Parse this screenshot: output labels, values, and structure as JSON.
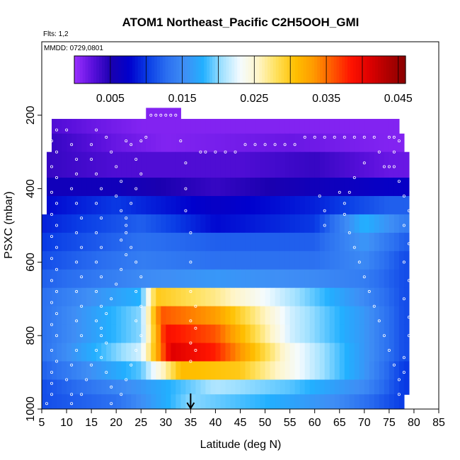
{
  "chart_data": {
    "type": "heatmap",
    "title": "ATOM1 Northeast_Pacific C2H5OOH_GMI",
    "subtitle_flights": "Flts: 1,2",
    "subtitle_dates": "MMDD: 0729,0801",
    "xlabel": "Latitude (deg N)",
    "ylabel": "PSXC (mbar)",
    "xlim": [
      5,
      85
    ],
    "ylim": [
      1000,
      0
    ],
    "x_ticks": [
      "5",
      "10",
      "15",
      "20",
      "25",
      "30",
      "35",
      "40",
      "45",
      "50",
      "55",
      "60",
      "65",
      "70",
      "75",
      "80",
      "85"
    ],
    "y_ticks": [
      "200",
      "400",
      "600",
      "800",
      "1000"
    ],
    "colorbar": {
      "range": [
        0,
        0.046
      ],
      "tick_values": [
        0.005,
        0.015,
        0.025,
        0.035,
        0.045
      ],
      "tick_labels": [
        "0.005",
        "0.015",
        "0.025",
        "0.035",
        "0.045"
      ],
      "colors": [
        "#9b30ff",
        "#5a10dc",
        "#1a00b0",
        "#0000cd",
        "#0a3ee6",
        "#2a6ef0",
        "#3f8ef5",
        "#22b0ff",
        "#9fe0ff",
        "#f4fbff",
        "#fff5c8",
        "#ffe05a",
        "#ffc000",
        "#ff9a00",
        "#ff5a00",
        "#ff1500",
        "#e00000",
        "#b00000",
        "#8b0000"
      ]
    },
    "marker_latitude": 35,
    "levels": [
      {
        "p_top": 180,
        "p_bot": 210,
        "x_start": 26,
        "x_end": 33,
        "values": [
          {
            "lat": 26,
            "v": 0.001
          }
        ]
      },
      {
        "p_top": 210,
        "p_bot": 250,
        "x_start": 7,
        "x_end": 77,
        "values": [
          {
            "lat": 7,
            "v": 0.003
          },
          {
            "lat": 15,
            "v": 0.002
          },
          {
            "lat": 25,
            "v": 0.001
          },
          {
            "lat": 60,
            "v": 0.001
          }
        ]
      },
      {
        "p_top": 250,
        "p_bot": 300,
        "x_start": 7,
        "x_end": 78,
        "values": [
          {
            "lat": 7,
            "v": 0.004
          },
          {
            "lat": 20,
            "v": 0.002
          },
          {
            "lat": 30,
            "v": 0.001
          },
          {
            "lat": 55,
            "v": 0.002
          },
          {
            "lat": 75,
            "v": 0.001
          }
        ]
      },
      {
        "p_top": 300,
        "p_bot": 370,
        "x_start": 6,
        "x_end": 79,
        "values": [
          {
            "lat": 6,
            "v": 0.004
          },
          {
            "lat": 20,
            "v": 0.003
          },
          {
            "lat": 45,
            "v": 0.003
          },
          {
            "lat": 60,
            "v": 0.004
          },
          {
            "lat": 75,
            "v": 0.002
          }
        ]
      },
      {
        "p_top": 370,
        "p_bot": 420,
        "x_start": 6,
        "x_end": 79,
        "values": [
          {
            "lat": 6,
            "v": 0.006
          },
          {
            "lat": 20,
            "v": 0.006
          },
          {
            "lat": 40,
            "v": 0.004
          },
          {
            "lat": 60,
            "v": 0.006
          },
          {
            "lat": 75,
            "v": 0.007
          }
        ]
      },
      {
        "p_top": 420,
        "p_bot": 470,
        "x_start": 6,
        "x_end": 79,
        "values": [
          {
            "lat": 6,
            "v": 0.008
          },
          {
            "lat": 20,
            "v": 0.01
          },
          {
            "lat": 40,
            "v": 0.007
          },
          {
            "lat": 60,
            "v": 0.009
          },
          {
            "lat": 75,
            "v": 0.012
          }
        ]
      },
      {
        "p_top": 470,
        "p_bot": 520,
        "x_start": 5,
        "x_end": 79,
        "values": [
          {
            "lat": 5,
            "v": 0.009
          },
          {
            "lat": 25,
            "v": 0.012
          },
          {
            "lat": 40,
            "v": 0.008
          },
          {
            "lat": 60,
            "v": 0.01
          },
          {
            "lat": 70,
            "v": 0.018
          },
          {
            "lat": 78,
            "v": 0.014
          }
        ]
      },
      {
        "p_top": 520,
        "p_bot": 570,
        "x_start": 5,
        "x_end": 79,
        "values": [
          {
            "lat": 5,
            "v": 0.01
          },
          {
            "lat": 25,
            "v": 0.013
          },
          {
            "lat": 40,
            "v": 0.012
          },
          {
            "lat": 60,
            "v": 0.012
          },
          {
            "lat": 70,
            "v": 0.016
          },
          {
            "lat": 78,
            "v": 0.012
          }
        ]
      },
      {
        "p_top": 570,
        "p_bot": 620,
        "x_start": 5,
        "x_end": 79,
        "values": [
          {
            "lat": 5,
            "v": 0.011
          },
          {
            "lat": 25,
            "v": 0.014
          },
          {
            "lat": 40,
            "v": 0.013
          },
          {
            "lat": 60,
            "v": 0.013
          },
          {
            "lat": 70,
            "v": 0.015
          },
          {
            "lat": 78,
            "v": 0.011
          }
        ]
      },
      {
        "p_top": 620,
        "p_bot": 670,
        "x_start": 5,
        "x_end": 79,
        "values": [
          {
            "lat": 5,
            "v": 0.012
          },
          {
            "lat": 25,
            "v": 0.015
          },
          {
            "lat": 40,
            "v": 0.016
          },
          {
            "lat": 60,
            "v": 0.015
          },
          {
            "lat": 70,
            "v": 0.014
          },
          {
            "lat": 78,
            "v": 0.011
          }
        ]
      },
      {
        "p_top": 670,
        "p_bot": 720,
        "x_start": 5,
        "x_end": 79,
        "values": [
          {
            "lat": 5,
            "v": 0.013
          },
          {
            "lat": 25,
            "v": 0.018
          },
          {
            "lat": 28,
            "v": 0.03
          },
          {
            "lat": 40,
            "v": 0.027
          },
          {
            "lat": 55,
            "v": 0.021
          },
          {
            "lat": 70,
            "v": 0.015
          },
          {
            "lat": 78,
            "v": 0.011
          }
        ]
      },
      {
        "p_top": 720,
        "p_bot": 770,
        "x_start": 5,
        "x_end": 79,
        "values": [
          {
            "lat": 5,
            "v": 0.013
          },
          {
            "lat": 25,
            "v": 0.02
          },
          {
            "lat": 29,
            "v": 0.036
          },
          {
            "lat": 40,
            "v": 0.033
          },
          {
            "lat": 55,
            "v": 0.022
          },
          {
            "lat": 70,
            "v": 0.016
          },
          {
            "lat": 78,
            "v": 0.011
          }
        ]
      },
      {
        "p_top": 770,
        "p_bot": 820,
        "x_start": 5,
        "x_end": 79,
        "values": [
          {
            "lat": 5,
            "v": 0.013
          },
          {
            "lat": 25,
            "v": 0.02
          },
          {
            "lat": 30,
            "v": 0.039
          },
          {
            "lat": 40,
            "v": 0.036
          },
          {
            "lat": 55,
            "v": 0.022
          },
          {
            "lat": 70,
            "v": 0.016
          },
          {
            "lat": 78,
            "v": 0.011
          }
        ]
      },
      {
        "p_top": 820,
        "p_bot": 870,
        "x_start": 5,
        "x_end": 79,
        "values": [
          {
            "lat": 5,
            "v": 0.013
          },
          {
            "lat": 25,
            "v": 0.022
          },
          {
            "lat": 31,
            "v": 0.041
          },
          {
            "lat": 40,
            "v": 0.038
          },
          {
            "lat": 55,
            "v": 0.024
          },
          {
            "lat": 70,
            "v": 0.016
          },
          {
            "lat": 78,
            "v": 0.011
          }
        ]
      },
      {
        "p_top": 870,
        "p_bot": 920,
        "x_start": 5,
        "x_end": 79,
        "values": [
          {
            "lat": 5,
            "v": 0.012
          },
          {
            "lat": 25,
            "v": 0.019
          },
          {
            "lat": 33,
            "v": 0.031
          },
          {
            "lat": 45,
            "v": 0.03
          },
          {
            "lat": 55,
            "v": 0.024
          },
          {
            "lat": 70,
            "v": 0.016
          },
          {
            "lat": 78,
            "v": 0.01
          }
        ]
      },
      {
        "p_top": 920,
        "p_bot": 960,
        "x_start": 5,
        "x_end": 79,
        "values": [
          {
            "lat": 5,
            "v": 0.011
          },
          {
            "lat": 25,
            "v": 0.016
          },
          {
            "lat": 40,
            "v": 0.021
          },
          {
            "lat": 55,
            "v": 0.019
          },
          {
            "lat": 70,
            "v": 0.015
          },
          {
            "lat": 78,
            "v": 0.01
          }
        ]
      },
      {
        "p_top": 960,
        "p_bot": 1000,
        "x_start": 5,
        "x_end": 78,
        "values": [
          {
            "lat": 5,
            "v": 0.011
          },
          {
            "lat": 20,
            "v": 0.013
          },
          {
            "lat": 35,
            "v": 0.02
          },
          {
            "lat": 50,
            "v": 0.018
          },
          {
            "lat": 65,
            "v": 0.015
          },
          {
            "lat": 78,
            "v": 0.01
          }
        ]
      }
    ],
    "flight_track": [
      [
        6,
        985
      ],
      [
        7,
        960
      ],
      [
        7,
        930
      ],
      [
        7,
        900
      ],
      [
        8,
        870
      ],
      [
        7,
        840
      ],
      [
        8,
        800
      ],
      [
        7,
        770
      ],
      [
        8,
        740
      ],
      [
        7,
        710
      ],
      [
        8,
        680
      ],
      [
        7,
        650
      ],
      [
        8,
        620
      ],
      [
        7,
        590
      ],
      [
        8,
        560
      ],
      [
        7,
        530
      ],
      [
        8,
        500
      ],
      [
        7,
        470
      ],
      [
        8,
        440
      ],
      [
        7,
        410
      ],
      [
        8,
        370
      ],
      [
        7,
        340
      ],
      [
        8,
        300
      ],
      [
        7,
        270
      ],
      [
        8,
        240
      ],
      [
        10,
        240
      ],
      [
        11,
        280
      ],
      [
        12,
        320
      ],
      [
        12,
        360
      ],
      [
        11,
        400
      ],
      [
        12,
        440
      ],
      [
        13,
        480
      ],
      [
        12,
        520
      ],
      [
        13,
        560
      ],
      [
        12,
        600
      ],
      [
        13,
        640
      ],
      [
        12,
        680
      ],
      [
        13,
        720
      ],
      [
        12,
        760
      ],
      [
        13,
        800
      ],
      [
        12,
        840
      ],
      [
        11,
        880
      ],
      [
        10,
        920
      ],
      [
        11,
        960
      ],
      [
        11,
        985
      ],
      [
        13,
        960
      ],
      [
        14,
        920
      ],
      [
        15,
        880
      ],
      [
        16,
        840
      ],
      [
        17,
        800
      ],
      [
        16,
        760
      ],
      [
        17,
        720
      ],
      [
        16,
        680
      ],
      [
        17,
        640
      ],
      [
        16,
        600
      ],
      [
        17,
        560
      ],
      [
        16,
        520
      ],
      [
        17,
        480
      ],
      [
        16,
        440
      ],
      [
        17,
        400
      ],
      [
        16,
        360
      ],
      [
        15,
        320
      ],
      [
        15,
        280
      ],
      [
        16,
        240
      ],
      [
        18,
        260
      ],
      [
        19,
        300
      ],
      [
        20,
        340
      ],
      [
        21,
        380
      ],
      [
        20,
        420
      ],
      [
        21,
        460
      ],
      [
        22,
        500
      ],
      [
        21,
        540
      ],
      [
        22,
        580
      ],
      [
        21,
        620
      ],
      [
        20,
        660
      ],
      [
        19,
        700
      ],
      [
        18,
        740
      ],
      [
        17,
        780
      ],
      [
        18,
        820
      ],
      [
        17,
        860
      ],
      [
        18,
        900
      ],
      [
        19,
        940
      ],
      [
        19,
        985
      ],
      [
        21,
        960
      ],
      [
        22,
        920
      ],
      [
        23,
        880
      ],
      [
        24,
        840
      ],
      [
        25,
        800
      ],
      [
        24,
        760
      ],
      [
        25,
        720
      ],
      [
        24,
        680
      ],
      [
        25,
        640
      ],
      [
        24,
        600
      ],
      [
        23,
        560
      ],
      [
        22,
        520
      ],
      [
        22,
        480
      ],
      [
        23,
        440
      ],
      [
        24,
        400
      ],
      [
        25,
        360
      ],
      [
        24,
        320
      ],
      [
        23,
        280
      ],
      [
        22,
        270
      ],
      [
        25,
        270
      ],
      [
        26,
        260
      ],
      [
        27,
        200
      ],
      [
        28,
        200
      ],
      [
        29,
        200
      ],
      [
        30,
        200
      ],
      [
        31,
        200
      ],
      [
        32,
        200
      ],
      [
        33,
        270
      ],
      [
        34,
        330
      ],
      [
        34,
        400
      ],
      [
        34,
        460
      ],
      [
        35,
        520
      ],
      [
        35,
        600
      ],
      [
        35,
        680
      ],
      [
        35,
        760
      ],
      [
        35,
        820
      ],
      [
        35,
        870
      ],
      [
        36,
        840
      ],
      [
        36,
        780
      ],
      [
        36,
        720
      ],
      [
        37,
        300
      ],
      [
        38,
        300
      ],
      [
        40,
        300
      ],
      [
        42,
        300
      ],
      [
        44,
        300
      ],
      [
        46,
        280
      ],
      [
        48,
        280
      ],
      [
        50,
        280
      ],
      [
        52,
        280
      ],
      [
        54,
        280
      ],
      [
        56,
        280
      ],
      [
        58,
        260
      ],
      [
        60,
        260
      ],
      [
        62,
        260
      ],
      [
        64,
        260
      ],
      [
        66,
        260
      ],
      [
        68,
        260
      ],
      [
        70,
        260
      ],
      [
        72,
        260
      ],
      [
        73,
        300
      ],
      [
        74,
        340
      ],
      [
        75,
        340
      ],
      [
        76,
        340
      ],
      [
        76,
        300
      ],
      [
        77,
        270
      ],
      [
        76,
        260
      ],
      [
        75,
        260
      ],
      [
        70,
        330
      ],
      [
        68,
        370
      ],
      [
        67,
        410
      ],
      [
        66,
        440
      ],
      [
        65,
        410
      ],
      [
        66,
        470
      ],
      [
        67,
        520
      ],
      [
        68,
        560
      ],
      [
        69,
        600
      ],
      [
        70,
        640
      ],
      [
        71,
        680
      ],
      [
        72,
        720
      ],
      [
        73,
        760
      ],
      [
        74,
        800
      ],
      [
        75,
        840
      ],
      [
        76,
        880
      ],
      [
        77,
        920
      ],
      [
        77,
        960
      ],
      [
        78,
        900
      ],
      [
        78,
        860
      ],
      [
        79,
        800
      ],
      [
        79,
        750
      ],
      [
        78,
        700
      ],
      [
        79,
        650
      ],
      [
        78,
        600
      ],
      [
        79,
        550
      ],
      [
        78,
        500
      ],
      [
        79,
        460
      ],
      [
        78,
        420
      ],
      [
        77,
        380
      ],
      [
        61,
        420
      ],
      [
        62,
        460
      ],
      [
        62,
        500
      ]
    ]
  }
}
